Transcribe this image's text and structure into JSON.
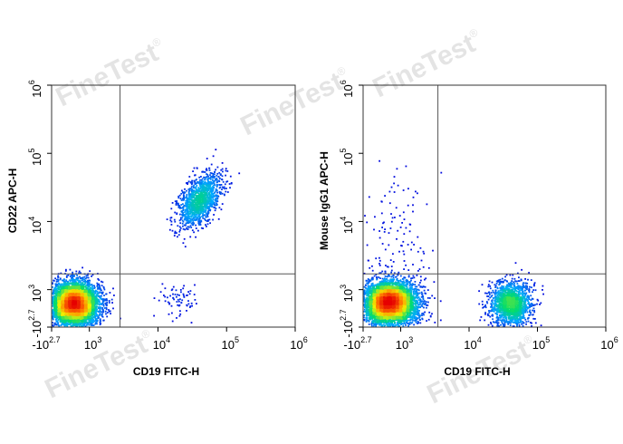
{
  "watermark": {
    "text": "FineTest",
    "mark": "®"
  },
  "chart_data": [
    {
      "type": "scatter",
      "style": "density pseudocolor",
      "xlabel": "CD19 FITC-H",
      "ylabel": "CD22 APC-H",
      "x_ticks": [
        {
          "label": "-10",
          "sup": "2.7",
          "value": -500
        },
        {
          "label": "10",
          "sup": "3",
          "value": 1000
        },
        {
          "label": "10",
          "sup": "4",
          "value": 10000
        },
        {
          "label": "10",
          "sup": "5",
          "value": 100000
        },
        {
          "label": "10",
          "sup": "6",
          "value": 1000000
        }
      ],
      "y_ticks": [
        {
          "label": "-10",
          "sup": "2.7",
          "value": -500
        },
        {
          "label": "10",
          "sup": "3",
          "value": 1000
        },
        {
          "label": "10",
          "sup": "4",
          "value": 10000
        },
        {
          "label": "10",
          "sup": "5",
          "value": 100000
        },
        {
          "label": "10",
          "sup": "6",
          "value": 1000000
        }
      ],
      "gate": {
        "x": 2800,
        "y": 1700
      },
      "populations": [
        {
          "x": 400,
          "y": 430,
          "sx": 0.18,
          "sy": 0.16,
          "n": 5200
        },
        {
          "x": 40000,
          "y": 20000,
          "sx": 0.16,
          "sy": 0.2,
          "corr": 0.55,
          "n": 1300
        },
        {
          "x": 20000,
          "y": 500,
          "sx": 0.15,
          "sy": 0.12,
          "n": 70
        }
      ]
    },
    {
      "type": "scatter",
      "style": "density pseudocolor",
      "xlabel": "CD19 FITC-H",
      "ylabel": "Mouse IgG1 APC-H",
      "x_ticks": [
        {
          "label": "-10",
          "sup": "2.7",
          "value": -500
        },
        {
          "label": "10",
          "sup": "3",
          "value": 1000
        },
        {
          "label": "10",
          "sup": "4",
          "value": 10000
        },
        {
          "label": "10",
          "sup": "5",
          "value": 100000
        },
        {
          "label": "10",
          "sup": "6",
          "value": 1000000
        }
      ],
      "y_ticks": [
        {
          "label": "-10",
          "sup": "2.7",
          "value": -500
        },
        {
          "label": "10",
          "sup": "3",
          "value": 1000
        },
        {
          "label": "10",
          "sup": "4",
          "value": 10000
        },
        {
          "label": "10",
          "sup": "5",
          "value": 100000
        },
        {
          "label": "10",
          "sup": "6",
          "value": 1000000
        }
      ],
      "gate": {
        "x": 3500,
        "y": 1700
      },
      "populations": [
        {
          "x": 550,
          "y": 450,
          "sx": 0.2,
          "sy": 0.16,
          "n": 5200
        },
        {
          "x": 40000,
          "y": 420,
          "sx": 0.15,
          "sy": 0.16,
          "n": 1600
        },
        {
          "x": 700,
          "y": 6000,
          "sx": 0.28,
          "sy": 0.55,
          "n": 120
        }
      ]
    }
  ]
}
